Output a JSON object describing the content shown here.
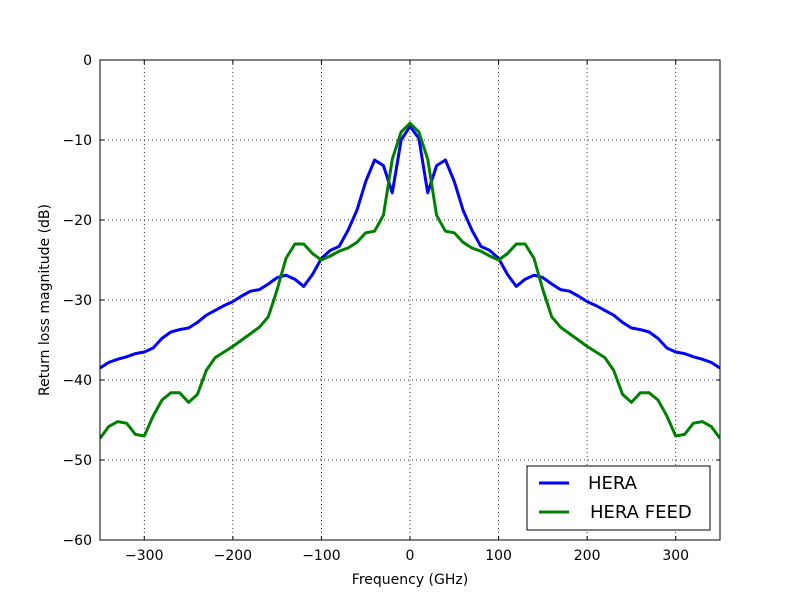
{
  "chart_data": {
    "type": "line",
    "title": "",
    "xlabel": "Frequency (GHz)",
    "ylabel": "Return loss magnitude (dB)",
    "xlim": [
      -350,
      350
    ],
    "ylim": [
      -60,
      0
    ],
    "xticks": [
      -300,
      -200,
      -100,
      0,
      100,
      200,
      300
    ],
    "xtick_labels": [
      "−300",
      "−200",
      "−100",
      "0",
      "100",
      "200",
      "300"
    ],
    "yticks": [
      0,
      -10,
      -20,
      -30,
      -40,
      -50,
      -60
    ],
    "ytick_labels": [
      "0",
      "−10",
      "−20",
      "−30",
      "−40",
      "−50",
      "−60"
    ],
    "grid": true,
    "legend_position": "lower-right",
    "series": [
      {
        "name": "HERA",
        "color": "#0000ff",
        "x": [
          -350,
          -340,
          -330,
          -320,
          -310,
          -300,
          -290,
          -280,
          -270,
          -260,
          -250,
          -240,
          -230,
          -220,
          -210,
          -200,
          -190,
          -180,
          -170,
          -160,
          -150,
          -140,
          -130,
          -120,
          -110,
          -100,
          -90,
          -80,
          -70,
          -60,
          -50,
          -40,
          -30,
          -20,
          -10,
          0,
          10,
          20,
          30,
          40,
          50,
          60,
          70,
          80,
          90,
          100,
          110,
          120,
          130,
          140,
          150,
          160,
          170,
          180,
          190,
          200,
          210,
          220,
          230,
          240,
          250,
          260,
          270,
          280,
          290,
          300,
          310,
          320,
          330,
          340,
          350
        ],
        "y": [
          -38.5,
          -37.8,
          -37.4,
          -37.1,
          -36.7,
          -36.5,
          -36.0,
          -34.8,
          -34.0,
          -33.7,
          -33.5,
          -32.8,
          -31.9,
          -31.3,
          -30.7,
          -30.2,
          -29.5,
          -28.9,
          -28.7,
          -28.0,
          -27.2,
          -26.9,
          -27.4,
          -28.3,
          -26.8,
          -24.8,
          -23.8,
          -23.3,
          -21.3,
          -18.8,
          -15.2,
          -12.5,
          -13.2,
          -16.6,
          -10.0,
          -8.3,
          -9.8,
          -16.6,
          -13.2,
          -12.5,
          -15.2,
          -18.8,
          -21.3,
          -23.3,
          -23.8,
          -24.8,
          -26.8,
          -28.3,
          -27.4,
          -26.9,
          -27.2,
          -28.0,
          -28.7,
          -28.9,
          -29.5,
          -30.2,
          -30.7,
          -31.3,
          -31.9,
          -32.8,
          -33.5,
          -33.7,
          -34.0,
          -34.8,
          -36.0,
          -36.5,
          -36.7,
          -37.1,
          -37.4,
          -37.8,
          -38.5
        ]
      },
      {
        "name": "HERA FEED",
        "color": "#008000",
        "x": [
          -350,
          -340,
          -330,
          -320,
          -310,
          -300,
          -290,
          -280,
          -270,
          -260,
          -250,
          -240,
          -230,
          -220,
          -210,
          -200,
          -190,
          -180,
          -170,
          -160,
          -150,
          -140,
          -130,
          -120,
          -110,
          -100,
          -90,
          -80,
          -70,
          -60,
          -50,
          -40,
          -30,
          -20,
          -10,
          0,
          10,
          20,
          30,
          40,
          50,
          60,
          70,
          80,
          90,
          100,
          110,
          120,
          130,
          140,
          150,
          160,
          170,
          180,
          190,
          200,
          210,
          220,
          230,
          240,
          250,
          260,
          270,
          280,
          290,
          300,
          310,
          320,
          330,
          340,
          350
        ],
        "y": [
          -47.3,
          -45.8,
          -45.2,
          -45.4,
          -46.8,
          -47.0,
          -44.5,
          -42.5,
          -41.6,
          -41.6,
          -42.8,
          -41.8,
          -38.8,
          -37.2,
          -36.5,
          -35.8,
          -35.0,
          -34.2,
          -33.4,
          -32.1,
          -28.7,
          -24.8,
          -23.0,
          -23.0,
          -24.2,
          -25.0,
          -24.5,
          -23.9,
          -23.5,
          -22.8,
          -21.6,
          -21.4,
          -19.4,
          -12.4,
          -9.0,
          -7.9,
          -9.0,
          -12.4,
          -19.4,
          -21.4,
          -21.6,
          -22.8,
          -23.5,
          -23.9,
          -24.5,
          -25.0,
          -24.2,
          -23.0,
          -23.0,
          -24.8,
          -28.7,
          -32.1,
          -33.4,
          -34.2,
          -35.0,
          -35.8,
          -36.5,
          -37.2,
          -38.8,
          -41.8,
          -42.8,
          -41.6,
          -41.6,
          -42.5,
          -44.5,
          -47.0,
          -46.8,
          -45.4,
          -45.2,
          -45.8,
          -47.3
        ]
      }
    ]
  }
}
